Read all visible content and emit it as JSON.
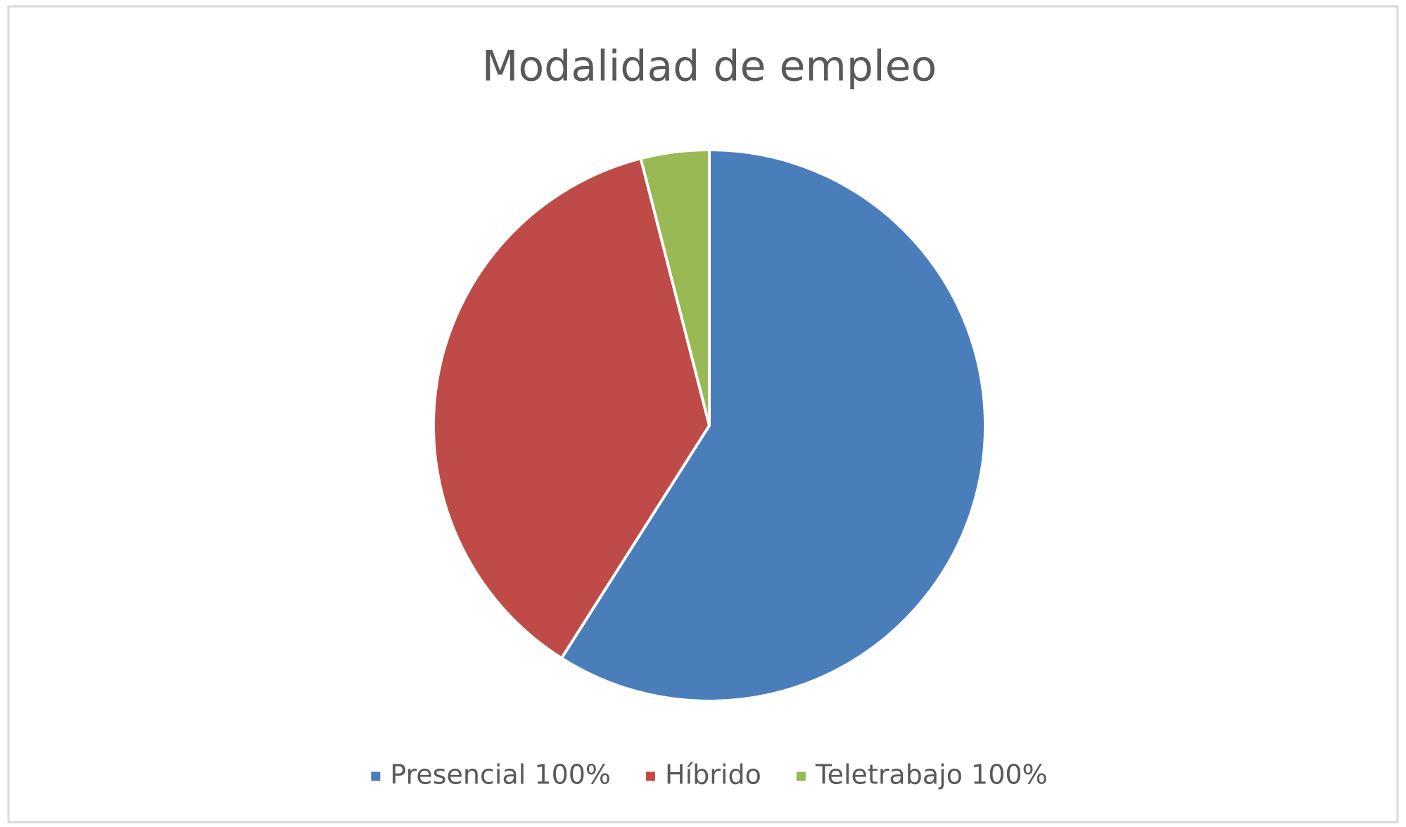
{
  "chart_data": {
    "type": "pie",
    "title": "Modalidad de empleo",
    "categories": [
      "Presencial 100%",
      "Híbrido",
      "Teletrabajo 100%"
    ],
    "values": [
      59,
      37,
      4
    ],
    "colors": [
      "#4a7ebb",
      "#be4b48",
      "#98b954"
    ],
    "legend": "bottom"
  }
}
